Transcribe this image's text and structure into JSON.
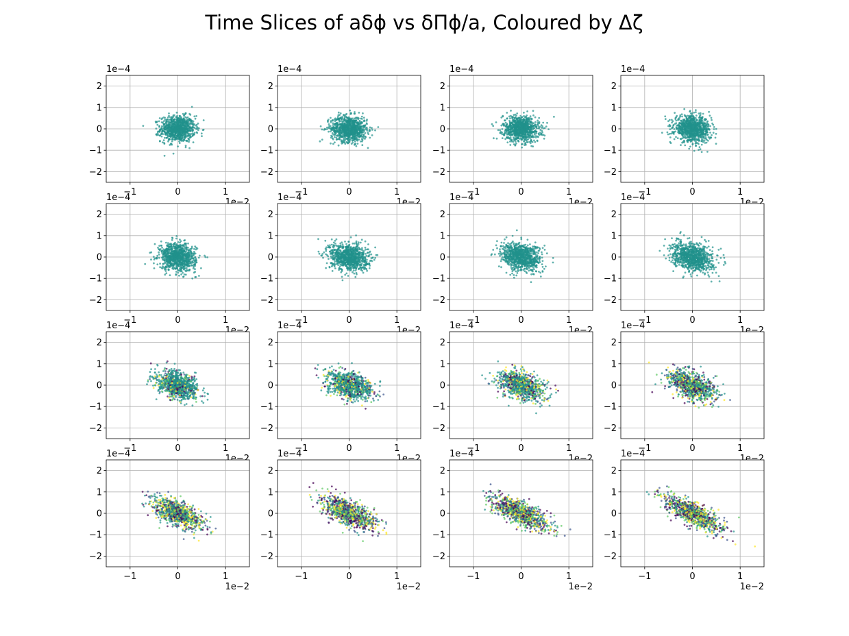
{
  "title": "Time Slices of aδϕ vs δΠϕ/a, Coloured by Δζ",
  "colormap": [
    "#440154",
    "#3b528b",
    "#21918c",
    "#5ec962",
    "#fde725"
  ],
  "chart_data": {
    "type": "scatter",
    "layout": "4x4 grid of subplots",
    "xlim": [
      -1.5,
      1.5
    ],
    "ylim": [
      -2.5,
      2.5
    ],
    "xticks": [
      -1,
      0,
      1
    ],
    "yticks": [
      -2,
      -1,
      0,
      1,
      2
    ],
    "x_tick_labels": [
      "−1",
      "0",
      "1"
    ],
    "y_tick_labels": [
      "−2",
      "−1",
      "0",
      "1",
      "2"
    ],
    "x_offset_label": "1e−2",
    "y_offset_label": "1e−4",
    "grid": true,
    "panels": [
      {
        "x_sd": 0.18,
        "y_sd": 0.3,
        "corr": 0.0,
        "colour_spread": 0.0
      },
      {
        "x_sd": 0.19,
        "y_sd": 0.3,
        "corr": -0.05,
        "colour_spread": 0.0
      },
      {
        "x_sd": 0.19,
        "y_sd": 0.3,
        "corr": -0.08,
        "colour_spread": 0.0
      },
      {
        "x_sd": 0.19,
        "y_sd": 0.3,
        "corr": -0.1,
        "colour_spread": 0.0
      },
      {
        "x_sd": 0.19,
        "y_sd": 0.32,
        "corr": -0.12,
        "colour_spread": 0.0
      },
      {
        "x_sd": 0.2,
        "y_sd": 0.32,
        "corr": -0.15,
        "colour_spread": 0.0
      },
      {
        "x_sd": 0.21,
        "y_sd": 0.33,
        "corr": -0.2,
        "colour_spread": 0.0
      },
      {
        "x_sd": 0.21,
        "y_sd": 0.33,
        "corr": -0.25,
        "colour_spread": 0.0
      },
      {
        "x_sd": 0.22,
        "y_sd": 0.33,
        "corr": -0.3,
        "colour_spread": 0.35
      },
      {
        "x_sd": 0.23,
        "y_sd": 0.33,
        "corr": -0.35,
        "colour_spread": 0.45
      },
      {
        "x_sd": 0.24,
        "y_sd": 0.34,
        "corr": -0.45,
        "colour_spread": 0.6
      },
      {
        "x_sd": 0.25,
        "y_sd": 0.35,
        "corr": -0.5,
        "colour_spread": 0.75
      },
      {
        "x_sd": 0.26,
        "y_sd": 0.36,
        "corr": -0.6,
        "colour_spread": 0.9
      },
      {
        "x_sd": 0.28,
        "y_sd": 0.38,
        "corr": -0.65,
        "colour_spread": 1.0
      },
      {
        "x_sd": 0.3,
        "y_sd": 0.4,
        "corr": -0.72,
        "colour_spread": 1.0
      },
      {
        "x_sd": 0.31,
        "y_sd": 0.42,
        "corr": -0.78,
        "colour_spread": 1.0
      }
    ]
  }
}
